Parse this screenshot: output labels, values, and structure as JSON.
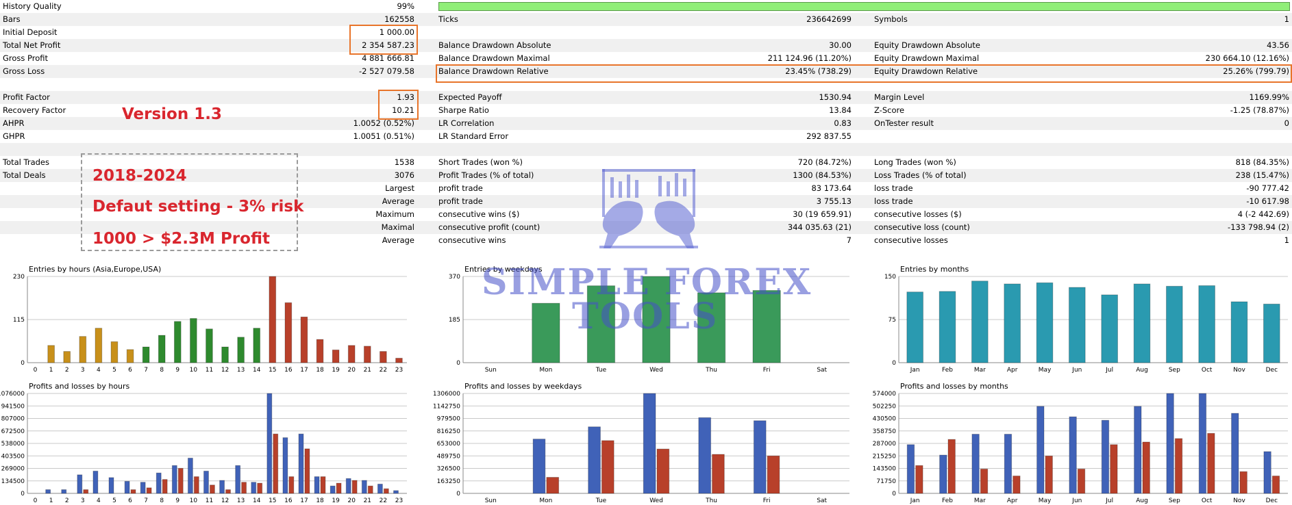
{
  "stats": {
    "history_quality": {
      "label": "History Quality",
      "value": "99%"
    },
    "rows": [
      {
        "c1l": "Bars",
        "c1v": "162558",
        "c2l": "Ticks",
        "c2v": "236642699",
        "c3l": "Symbols",
        "c3v": "1"
      },
      {
        "c1l": "Initial Deposit",
        "c1v": "1 000.00",
        "c2l": "",
        "c2v": "",
        "c3l": "",
        "c3v": ""
      },
      {
        "c1l": "Total Net Profit",
        "c1v": "2 354 587.23",
        "c2l": "Balance Drawdown Absolute",
        "c2v": "30.00",
        "c3l": "Equity Drawdown Absolute",
        "c3v": "43.56"
      },
      {
        "c1l": "Gross Profit",
        "c1v": "4 881 666.81",
        "c2l": "Balance Drawdown Maximal",
        "c2v": "211 124.96 (11.20%)",
        "c3l": "Equity Drawdown Maximal",
        "c3v": "230 664.10 (12.16%)"
      },
      {
        "c1l": "Gross Loss",
        "c1v": "-2 527 079.58",
        "c2l": "Balance Drawdown Relative",
        "c2v": "23.45% (738.29)",
        "c3l": "Equity Drawdown Relative",
        "c3v": "25.26% (799.79)"
      },
      {
        "c1l": "",
        "c1v": "",
        "c2l": "",
        "c2v": "",
        "c3l": "",
        "c3v": ""
      },
      {
        "c1l": "Profit Factor",
        "c1v": "1.93",
        "c2l": "Expected Payoff",
        "c2v": "1530.94",
        "c3l": "Margin Level",
        "c3v": "1169.99%"
      },
      {
        "c1l": "Recovery Factor",
        "c1v": "10.21",
        "c2l": "Sharpe Ratio",
        "c2v": "13.84",
        "c3l": "Z-Score",
        "c3v": "-1.25 (78.87%)"
      },
      {
        "c1l": "AHPR",
        "c1v": "1.0052 (0.52%)",
        "c2l": "LR Correlation",
        "c2v": "0.83",
        "c3l": "OnTester result",
        "c3v": "0"
      },
      {
        "c1l": "GHPR",
        "c1v": "1.0051 (0.51%)",
        "c2l": "LR Standard Error",
        "c2v": "292 837.55",
        "c3l": "",
        "c3v": ""
      },
      {
        "c1l": "",
        "c1v": "",
        "c2l": "",
        "c2v": "",
        "c3l": "",
        "c3v": ""
      },
      {
        "c1l": "Total Trades",
        "c1v": "1538",
        "c2l": "Short Trades (won %)",
        "c2v": "720 (84.72%)",
        "c3l": "Long Trades (won %)",
        "c3v": "818 (84.35%)"
      },
      {
        "c1l": "Total Deals",
        "c1v": "3076",
        "c2l": "Profit Trades (% of total)",
        "c2v": "1300 (84.53%)",
        "c3l": "Loss Trades (% of total)",
        "c3v": "238 (15.47%)"
      },
      {
        "c1l": "",
        "c1v": "Largest",
        "c2l": "profit trade",
        "c2v": "83 173.64",
        "c3l": "loss trade",
        "c3v": "-90 777.42"
      },
      {
        "c1l": "",
        "c1v": "Average",
        "c2l": "profit trade",
        "c2v": "3 755.13",
        "c3l": "loss trade",
        "c3v": "-10 617.98"
      },
      {
        "c1l": "",
        "c1v": "Maximum",
        "c2l": "consecutive wins ($)",
        "c2v": "30 (19 659.91)",
        "c3l": "consecutive losses ($)",
        "c3v": "4 (-2 442.69)"
      },
      {
        "c1l": "",
        "c1v": "Maximal",
        "c2l": "consecutive profit (count)",
        "c2v": "344 035.63 (21)",
        "c3l": "consecutive loss (count)",
        "c3v": "-133 798.94 (2)"
      },
      {
        "c1l": "",
        "c1v": "Average",
        "c2l": "consecutive wins",
        "c2v": "7",
        "c3l": "consecutive losses",
        "c3v": "1"
      }
    ]
  },
  "annotations": {
    "version": "Version 1.3",
    "period": "2018-2024",
    "setting": "Defaut setting - 3% risk",
    "profit": "1000 > $2.3M Profit",
    "color": "#d9262e",
    "highlight_color": "#e8742a"
  },
  "watermark": {
    "line1": "SIMPLE FOREX",
    "line2": "TOOLS",
    "color": "#4650c8"
  },
  "chart_data": [
    {
      "id": "hours",
      "type": "bar",
      "title": "Entries by hours (Asia,Europe,USA)",
      "categories": [
        "0",
        "1",
        "2",
        "3",
        "4",
        "5",
        "6",
        "7",
        "8",
        "9",
        "10",
        "11",
        "12",
        "13",
        "14",
        "15",
        "16",
        "17",
        "18",
        "19",
        "20",
        "21",
        "22",
        "23"
      ],
      "values": [
        0,
        46,
        30,
        70,
        92,
        56,
        35,
        42,
        73,
        110,
        118,
        90,
        42,
        68,
        92,
        230,
        160,
        122,
        62,
        34,
        46,
        44,
        30,
        12
      ],
      "ylim": [
        0,
        230
      ],
      "yticks": [
        "0",
        "115",
        "230"
      ],
      "colors": {
        "asia": "#c8901a",
        "europe": "#2e8a2e",
        "usa": "#b8402a"
      }
    },
    {
      "id": "weekdays",
      "type": "bar",
      "title": "Entries by weekdays",
      "categories": [
        "Sun",
        "Mon",
        "Tue",
        "Wed",
        "Thu",
        "Fri",
        "Sat"
      ],
      "values": [
        0,
        255,
        330,
        370,
        300,
        310,
        0
      ],
      "ylim": [
        0,
        370
      ],
      "yticks": [
        "0",
        "185",
        "370"
      ],
      "color": "#3a9a5a"
    },
    {
      "id": "months",
      "type": "bar",
      "title": "Entries by months",
      "categories": [
        "Jan",
        "Feb",
        "Mar",
        "Apr",
        "May",
        "Jun",
        "Jul",
        "Aug",
        "Sep",
        "Oct",
        "Nov",
        "Dec"
      ],
      "values": [
        123,
        124,
        142,
        137,
        139,
        131,
        118,
        137,
        133,
        134,
        106,
        102
      ],
      "ylim": [
        0,
        150
      ],
      "yticks": [
        "0",
        "75",
        "150"
      ],
      "color": "#2a9ab0"
    },
    {
      "id": "pl-hours",
      "type": "bar",
      "title": "Profits and losses by hours",
      "categories": [
        "0",
        "1",
        "2",
        "3",
        "4",
        "5",
        "6",
        "7",
        "8",
        "9",
        "10",
        "11",
        "12",
        "13",
        "14",
        "15",
        "16",
        "17",
        "18",
        "19",
        "20",
        "21",
        "22",
        "23"
      ],
      "series": [
        {
          "name": "profit",
          "values": [
            0,
            40000,
            40000,
            200000,
            240000,
            170000,
            130000,
            120000,
            220000,
            300000,
            380000,
            240000,
            140000,
            300000,
            120000,
            1076000,
            600000,
            640000,
            180000,
            80000,
            160000,
            140000,
            100000,
            30000
          ]
        },
        {
          "name": "loss",
          "values": [
            0,
            0,
            0,
            40000,
            0,
            0,
            40000,
            60000,
            150000,
            270000,
            180000,
            90000,
            40000,
            120000,
            110000,
            640000,
            180000,
            480000,
            180000,
            110000,
            140000,
            80000,
            50000,
            0
          ]
        }
      ],
      "ylim": [
        0,
        1076000
      ],
      "yticks": [
        "0",
        "134500",
        "269000",
        "403500",
        "538000",
        "672500",
        "807000",
        "941500",
        "1076000"
      ]
    },
    {
      "id": "pl-weekdays",
      "type": "bar",
      "title": "Profits and losses by weekdays",
      "categories": [
        "Sun",
        "Mon",
        "Tue",
        "Wed",
        "Thu",
        "Fri",
        "Sat"
      ],
      "series": [
        {
          "name": "profit",
          "values": [
            0,
            710000,
            870000,
            1306000,
            990000,
            950000,
            0
          ]
        },
        {
          "name": "loss",
          "values": [
            0,
            210000,
            690000,
            580000,
            510000,
            490000,
            0
          ]
        }
      ],
      "ylim": [
        0,
        1306000
      ],
      "yticks": [
        "0",
        "163250",
        "326500",
        "489750",
        "653000",
        "816250",
        "979500",
        "1142750",
        "1306000"
      ]
    },
    {
      "id": "pl-months",
      "type": "bar",
      "title": "Profits and losses by months",
      "categories": [
        "Jan",
        "Feb",
        "Mar",
        "Apr",
        "May",
        "Jun",
        "Jul",
        "Aug",
        "Sep",
        "Oct",
        "Nov",
        "Dec"
      ],
      "series": [
        {
          "name": "profit",
          "values": [
            280000,
            220000,
            340000,
            340000,
            500000,
            440000,
            420000,
            500000,
            574000,
            574000,
            460000,
            240000
          ]
        },
        {
          "name": "loss",
          "values": [
            160000,
            310000,
            140000,
            100000,
            215000,
            140000,
            280000,
            295000,
            315000,
            345000,
            125000,
            100000
          ]
        }
      ],
      "ylim": [
        0,
        574000
      ],
      "yticks": [
        "0",
        "71750",
        "143500",
        "215250",
        "287000",
        "358750",
        "430500",
        "502250",
        "574000"
      ]
    }
  ]
}
